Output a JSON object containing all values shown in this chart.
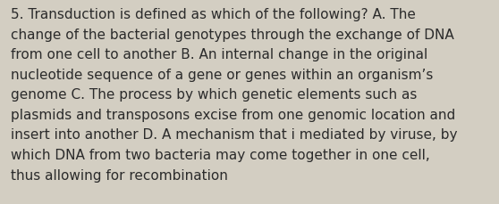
{
  "background_color": "#d3cec2",
  "text_color": "#2b2b2b",
  "lines": [
    "5. Transduction is defined as which of the following? A. The",
    "change of the bacterial genotypes through the exchange of DNA",
    "from one cell to another B. An internal change in the original",
    "nucleotide sequence of a gene or genes within an organism’s",
    "genome C. The process by which genetic elements such as",
    "plasmids and transposons excise from one genomic location and",
    "insert into another D. A mechanism that i mediated by viruse, by",
    "which DNA from two bacteria may come together in one cell,",
    "thus allowing for recombination"
  ],
  "font_size": 11.0,
  "fig_width": 5.58,
  "fig_height": 2.3,
  "dpi": 100
}
